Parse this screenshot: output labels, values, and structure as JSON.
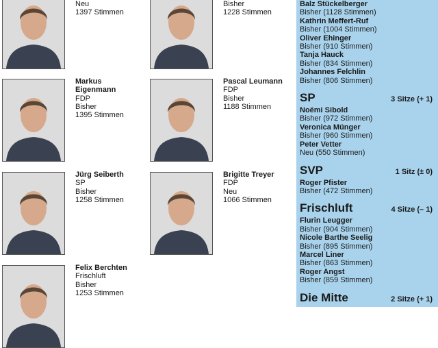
{
  "candidates": [
    {
      "name": [],
      "lines": [
        "Neu",
        "1397 Stimmen"
      ]
    },
    {
      "name": [],
      "lines": [
        "Bisher",
        "1228 Stimmen"
      ]
    },
    {
      "name": [
        "Markus",
        "Eigenmann"
      ],
      "lines": [
        "FDP",
        "Bisher",
        "1395 Stimmen"
      ]
    },
    {
      "name": [
        "Pascal Leumann"
      ],
      "lines": [
        "FDP",
        "Bisher",
        "1188 Stimmen"
      ]
    },
    {
      "name": [
        "Jürg Seiberth"
      ],
      "lines": [
        "SP",
        "Bisher",
        "1258 Stimmen"
      ]
    },
    {
      "name": [
        "Brigitte Treyer"
      ],
      "lines": [
        "FDP",
        "Neu",
        "1066 Stimmen"
      ]
    },
    {
      "name": [
        "Felix Berchten"
      ],
      "lines": [
        "Frischluft",
        "Bisher",
        "1253 Stimmen"
      ]
    }
  ],
  "sidebar": {
    "top_entries": [
      {
        "name": "Balz Stückelberger",
        "detail": "Bisher (1128 Stimmen)"
      },
      {
        "name": "Kathrin Meffert-Ruf",
        "detail": "Bisher (1004 Stimmen)"
      },
      {
        "name": "Oliver Ehinger",
        "detail": "Bisher (910 Stimmen)"
      },
      {
        "name": "Tanja Hauck",
        "detail": "Bisher (834 Stimmen)"
      },
      {
        "name": "Johannes Felchlin",
        "detail": "Bisher (806 Stimmen)"
      }
    ],
    "parties": [
      {
        "name": "SP",
        "seats": "3 Sitze (+ 1)",
        "members": [
          {
            "name": "Noëmi Sibold",
            "detail": "Bisher (972 Stimmen)"
          },
          {
            "name": "Veronica Münger",
            "detail": "Bisher (960 Stimmen)"
          },
          {
            "name": "Peter Vetter",
            "detail": "Neu (550 Stimmen)"
          }
        ]
      },
      {
        "name": "SVP",
        "seats": "1 Sitz (± 0)",
        "members": [
          {
            "name": "Roger Pfister",
            "detail": "Bisher (472 Stimmen)"
          }
        ]
      },
      {
        "name": "Frischluft",
        "seats": "4 Sitze (– 1)",
        "members": [
          {
            "name": "Flurin Leugger",
            "detail": "Bisher (904 Stimmen)"
          },
          {
            "name": "Nicole Barthe Seelig",
            "detail": "Bisher (895 Stimmen)"
          },
          {
            "name": "Marcel Liner",
            "detail": "Bisher (863 Stimmen)"
          },
          {
            "name": "Roger Angst",
            "detail": "Bisher (859 Stimmen)"
          }
        ]
      },
      {
        "name": "Die Mitte",
        "seats": "2 Sitze (+ 1)",
        "members": []
      }
    ]
  }
}
